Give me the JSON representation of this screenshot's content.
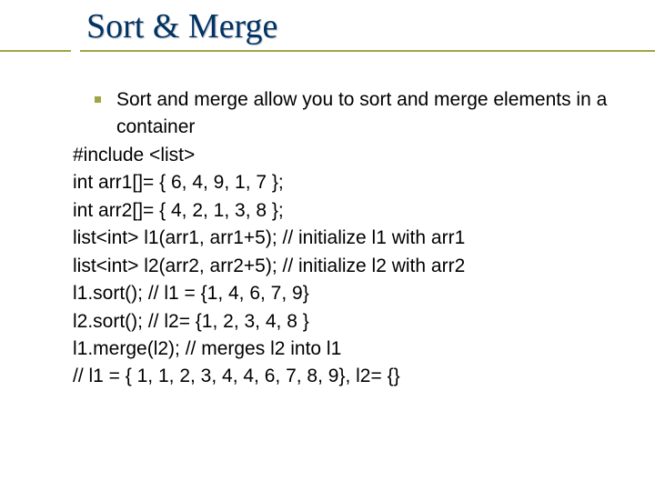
{
  "title": "Sort & Merge",
  "colors": {
    "title_color": "#003366",
    "underline_color": "#9ea544",
    "bullet_color": "#9ea544",
    "body_text_color": "#000000",
    "background_color": "#ffffff"
  },
  "typography": {
    "title_font": "Times New Roman",
    "title_size_pt": 38,
    "body_font": "Arial",
    "body_size_pt": 21,
    "line_height": 1.45
  },
  "bullet": {
    "text": "Sort and merge allow you to sort and merge elements in a container"
  },
  "code_lines": [
    "#include <list>",
    "int arr1[]= { 6, 4, 9, 1, 7 };",
    "int arr2[]= { 4, 2, 1, 3, 8 };",
    "list<int>  l1(arr1, arr1+5); // initialize l1 with arr1",
    "list<int>  l2(arr2, arr2+5); // initialize l2 with arr2",
    "l1.sort();  // l1 = {1, 4, 6, 7, 9}",
    "l2.sort(); // l2= {1, 2, 3, 4, 8 }",
    "l1.merge(l2);  // merges l2 into l1",
    "// l1 = { 1, 1, 2, 3, 4, 4, 6, 7, 8, 9},  l2= {}"
  ]
}
